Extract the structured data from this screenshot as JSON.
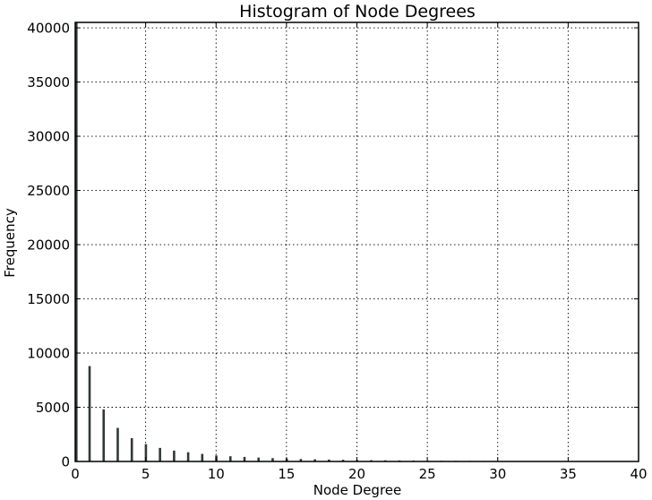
{
  "chart_data": {
    "type": "bar",
    "title": "Histogram of Node Degrees",
    "xlabel": "Node Degree",
    "ylabel": "Frequency",
    "xlim": [
      0,
      40
    ],
    "ylim": [
      0,
      40500
    ],
    "grid": true,
    "x_ticks": [
      0,
      5,
      10,
      15,
      20,
      25,
      30,
      35,
      40
    ],
    "y_ticks": [
      0,
      5000,
      10000,
      15000,
      20000,
      25000,
      30000,
      35000,
      40000
    ],
    "x": [
      0,
      1,
      2,
      3,
      4,
      5,
      6,
      7,
      8,
      9,
      10,
      11,
      12,
      13,
      14,
      15,
      16,
      17,
      18,
      19,
      20,
      21,
      22,
      23,
      24,
      25,
      26,
      27,
      28,
      29,
      30,
      31,
      32,
      33,
      34,
      35,
      36,
      37,
      38,
      39
    ],
    "values": [
      40500,
      8800,
      4800,
      3100,
      2150,
      1600,
      1250,
      1000,
      850,
      700,
      550,
      480,
      420,
      360,
      310,
      270,
      230,
      200,
      175,
      155,
      135,
      120,
      105,
      95,
      85,
      75,
      65,
      58,
      52,
      47,
      42,
      38,
      34,
      31,
      28,
      25,
      23,
      21,
      19,
      17
    ],
    "bar_color": "#2f3a36"
  }
}
